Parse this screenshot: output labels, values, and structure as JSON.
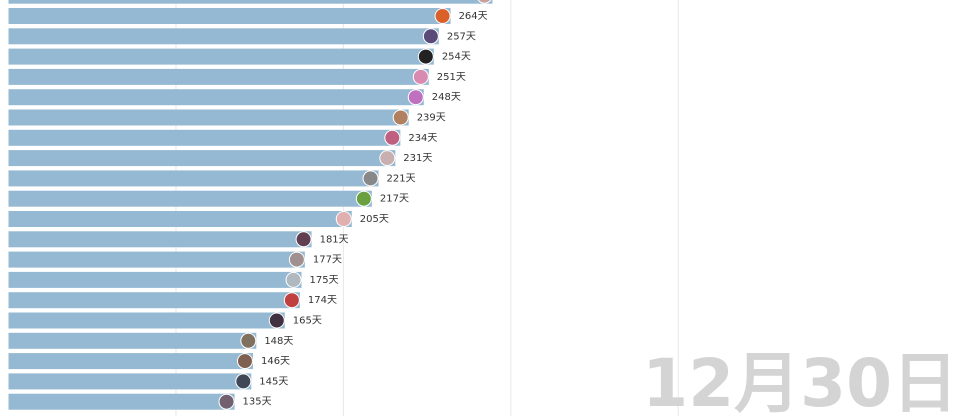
{
  "chart_data": {
    "type": "bar",
    "orientation": "horizontal",
    "values": [
      289,
      264,
      257,
      254,
      251,
      248,
      239,
      234,
      231,
      221,
      217,
      205,
      181,
      177,
      175,
      174,
      165,
      148,
      146,
      145,
      135
    ],
    "value_labels": [
      null,
      "264天",
      "257天",
      "254天",
      "251天",
      "248天",
      "239天",
      "234天",
      "231天",
      "221天",
      "217天",
      "205天",
      "181天",
      "177天",
      "175天",
      "174天",
      "165天",
      "148天",
      "146天",
      "145天",
      "135天"
    ],
    "color": "#95b9d2",
    "xlim": [
      0,
      576
    ],
    "xticks": [
      100,
      200,
      300,
      400
    ],
    "grid": true,
    "annotation": "12月30日"
  }
}
